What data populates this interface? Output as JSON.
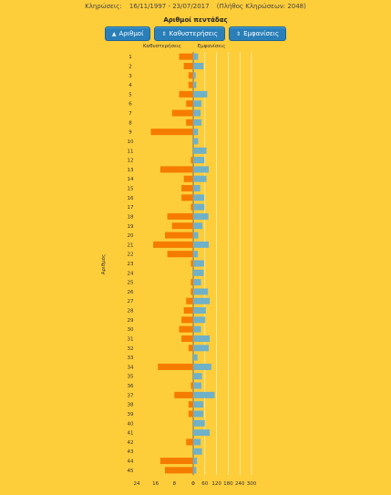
{
  "header": {
    "draws_label": "Κληρώσεις:",
    "date_range": "16/11/1997 - 23/07/2017",
    "draw_count": "(Πλήθος Κληρώσεων: 2048)"
  },
  "buttons": [
    {
      "label": "Αριθμοί",
      "icon": "▲"
    },
    {
      "label": "Καθυστερήσεις",
      "icon": "⇕"
    },
    {
      "label": "Εμφανίσεις",
      "icon": "⇕"
    }
  ],
  "colors": {
    "delays": "#f57c00",
    "appearances": "#6fb1c8",
    "background": "#fecd3a",
    "button": "#2a7fb8"
  },
  "chart_data": {
    "type": "bar",
    "title": "Αριθμοί πεντάδας",
    "ylabel": "Αριθμός",
    "left_label": "Καθυστερήσεις",
    "right_label": "Εμφανίσεις",
    "categories": [
      "1",
      "2",
      "3",
      "4",
      "5",
      "6",
      "7",
      "8",
      "9",
      "10",
      "11",
      "12",
      "13",
      "14",
      "15",
      "16",
      "17",
      "18",
      "19",
      "20",
      "21",
      "22",
      "23",
      "24",
      "25",
      "26",
      "27",
      "28",
      "29",
      "30",
      "31",
      "32",
      "33",
      "34",
      "35",
      "36",
      "37",
      "38",
      "39",
      "40",
      "41",
      "42",
      "43",
      "44",
      "45"
    ],
    "series": [
      {
        "name": "Καθυστερήσεις",
        "values": [
          6,
          4,
          2,
          2,
          6,
          3,
          9,
          3,
          18,
          0,
          0,
          1,
          14,
          4,
          5,
          5,
          1,
          11,
          9,
          12,
          17,
          11,
          1,
          0,
          1,
          1,
          3,
          4,
          5,
          6,
          5,
          2,
          0,
          15,
          0,
          1,
          8,
          2,
          2,
          0,
          0,
          3,
          0,
          14,
          12
        ]
      },
      {
        "name": "Εμφανίσεις",
        "values": [
          25,
          53,
          13,
          16,
          72,
          42,
          38,
          42,
          25,
          26,
          68,
          58,
          80,
          68,
          36,
          57,
          58,
          78,
          48,
          26,
          80,
          24,
          56,
          54,
          40,
          76,
          85,
          65,
          62,
          40,
          85,
          80,
          22,
          93,
          45,
          42,
          110,
          52,
          52,
          60,
          85,
          38,
          45,
          20,
          16
        ]
      }
    ],
    "left_ticks": [
      "24",
      "16",
      "8",
      "0"
    ],
    "right_ticks": [
      "0",
      "60",
      "120",
      "180",
      "240",
      "300"
    ],
    "left_max": 24,
    "right_max": 300
  }
}
